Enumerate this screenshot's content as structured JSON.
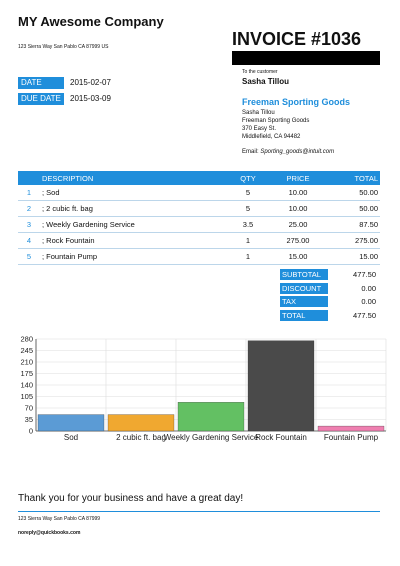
{
  "company": {
    "name": "MY Awesome Company",
    "address": "123 Sierra Way San Pablo  CA 87999 US"
  },
  "invoice": {
    "title": "INVOICE #1036",
    "date_label": "DATE",
    "date": "2015-02-07",
    "due_label": "DUE DATE",
    "due_date": "2015-03-09"
  },
  "customer": {
    "to_label": "To the customer",
    "name": "Sasha Tillou",
    "company": "Freeman Sporting Goods",
    "address_lines": [
      "Sasha Tillou",
      "Freeman Sporting Goods",
      "370 Easy St.",
      "Middlefield, CA 94482"
    ],
    "email_label": "Email:",
    "email": "Sporting_goods@intuit.com"
  },
  "table": {
    "headers": [
      "DESCRIPTION",
      "QTY",
      "PRICE",
      "TOTAL"
    ],
    "rows": [
      {
        "num": "1",
        "desc": "; Sod",
        "qty": "5",
        "price": "10.00",
        "total": "50.00"
      },
      {
        "num": "2",
        "desc": "; 2 cubic ft. bag",
        "qty": "5",
        "price": "10.00",
        "total": "50.00"
      },
      {
        "num": "3",
        "desc": "; Weekly Gardening Service",
        "qty": "3.5",
        "price": "25.00",
        "total": "87.50"
      },
      {
        "num": "4",
        "desc": "; Rock Fountain",
        "qty": "1",
        "price": "275.00",
        "total": "275.00"
      },
      {
        "num": "5",
        "desc": "; Fountain Pump",
        "qty": "1",
        "price": "15.00",
        "total": "15.00"
      }
    ]
  },
  "totals": [
    {
      "label": "SUBTOTAL",
      "value": "477.50"
    },
    {
      "label": "DISCOUNT",
      "value": "0.00"
    },
    {
      "label": "TAX",
      "value": "0.00"
    },
    {
      "label": "TOTAL",
      "value": "477.50"
    }
  ],
  "chart_data": {
    "type": "bar",
    "categories": [
      "Sod",
      "2 cubic ft. bag",
      "Weekly Gardening Service",
      "Rock Fountain",
      "Fountain Pump"
    ],
    "values": [
      50,
      50,
      87.5,
      275,
      15
    ],
    "colors": [
      "#5b9bd5",
      "#f0a830",
      "#63c063",
      "#4a4a4a",
      "#ef7fb0"
    ],
    "ylim": [
      0,
      280
    ],
    "yticks": [
      0,
      35,
      70,
      105,
      140,
      175,
      210,
      245,
      280
    ],
    "grid": true
  },
  "footer": {
    "thanks": "Thank you for your business and have a great day!",
    "address": "123 Sierra Way San Pablo CA 87999",
    "email": "noreply@quickbooks.com"
  }
}
